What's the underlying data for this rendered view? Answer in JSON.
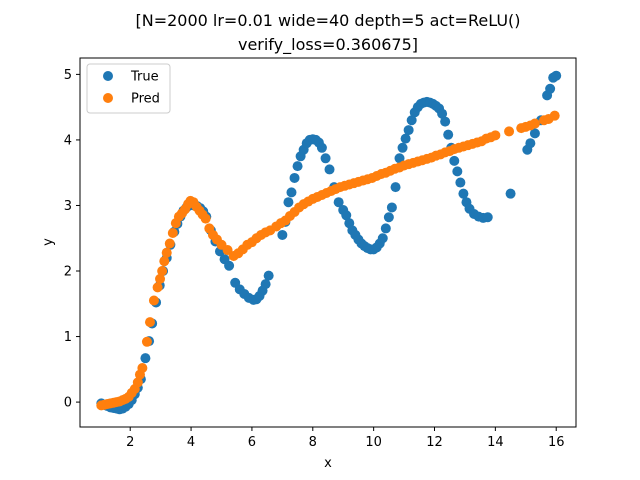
{
  "chart_data": {
    "type": "scatter",
    "title_lines": [
      "[N=2000 lr=0.01 wide=40 depth=5 act=ReLU()",
      "verify_loss=0.360675]"
    ],
    "xlabel": "x",
    "ylabel": "y",
    "xlim": [
      0.35,
      16.65
    ],
    "ylim": [
      -0.38,
      5.25
    ],
    "xticks": [
      2,
      4,
      6,
      8,
      10,
      12,
      14,
      16
    ],
    "yticks": [
      0,
      1,
      2,
      3,
      4,
      5
    ],
    "grid": false,
    "legend_position": "top-left",
    "series": [
      {
        "name": "True",
        "color": "#1f77b4",
        "points": [
          [
            1.05,
            -0.02
          ],
          [
            1.15,
            -0.04
          ],
          [
            1.25,
            -0.06
          ],
          [
            1.35,
            -0.08
          ],
          [
            1.45,
            -0.09
          ],
          [
            1.55,
            -0.1
          ],
          [
            1.65,
            -0.11
          ],
          [
            1.75,
            -0.1
          ],
          [
            1.85,
            -0.07
          ],
          [
            1.95,
            -0.03
          ],
          [
            2.05,
            0.03
          ],
          [
            2.15,
            0.12
          ],
          [
            2.25,
            0.22
          ],
          [
            2.35,
            0.35
          ],
          [
            2.5,
            0.67
          ],
          [
            2.62,
            0.93
          ],
          [
            2.72,
            1.2
          ],
          [
            2.85,
            1.52
          ],
          [
            2.97,
            1.78
          ],
          [
            3.08,
            2.0
          ],
          [
            3.2,
            2.2
          ],
          [
            3.32,
            2.4
          ],
          [
            3.45,
            2.6
          ],
          [
            3.55,
            2.72
          ],
          [
            3.65,
            2.83
          ],
          [
            3.75,
            2.92
          ],
          [
            3.85,
            2.97
          ],
          [
            3.95,
            3.0
          ],
          [
            4.1,
            3.0
          ],
          [
            4.2,
            2.99
          ],
          [
            4.3,
            2.96
          ],
          [
            4.4,
            2.91
          ],
          [
            4.5,
            2.83
          ],
          [
            4.65,
            2.62
          ],
          [
            4.8,
            2.45
          ],
          [
            4.95,
            2.3
          ],
          [
            5.1,
            2.18
          ],
          [
            5.25,
            2.08
          ],
          [
            5.45,
            1.82
          ],
          [
            5.6,
            1.72
          ],
          [
            5.75,
            1.65
          ],
          [
            5.9,
            1.59
          ],
          [
            6.05,
            1.56
          ],
          [
            6.15,
            1.57
          ],
          [
            6.25,
            1.62
          ],
          [
            6.35,
            1.7
          ],
          [
            6.45,
            1.8
          ],
          [
            6.55,
            1.93
          ],
          [
            7.0,
            2.55
          ],
          [
            7.1,
            2.75
          ],
          [
            7.2,
            3.05
          ],
          [
            7.3,
            3.2
          ],
          [
            7.4,
            3.42
          ],
          [
            7.5,
            3.6
          ],
          [
            7.6,
            3.75
          ],
          [
            7.7,
            3.85
          ],
          [
            7.8,
            3.95
          ],
          [
            7.9,
            4.0
          ],
          [
            8.0,
            4.01
          ],
          [
            8.1,
            4.0
          ],
          [
            8.2,
            3.96
          ],
          [
            8.3,
            3.88
          ],
          [
            8.42,
            3.72
          ],
          [
            8.55,
            3.55
          ],
          [
            8.7,
            3.28
          ],
          [
            8.85,
            3.05
          ],
          [
            9.0,
            2.93
          ],
          [
            9.1,
            2.85
          ],
          [
            9.2,
            2.73
          ],
          [
            9.3,
            2.62
          ],
          [
            9.4,
            2.55
          ],
          [
            9.5,
            2.48
          ],
          [
            9.6,
            2.42
          ],
          [
            9.7,
            2.38
          ],
          [
            9.8,
            2.35
          ],
          [
            9.9,
            2.33
          ],
          [
            10.0,
            2.33
          ],
          [
            10.1,
            2.36
          ],
          [
            10.2,
            2.42
          ],
          [
            10.3,
            2.5
          ],
          [
            10.4,
            2.65
          ],
          [
            10.5,
            2.82
          ],
          [
            10.6,
            2.97
          ],
          [
            10.72,
            3.28
          ],
          [
            10.85,
            3.72
          ],
          [
            10.95,
            3.88
          ],
          [
            11.05,
            4.02
          ],
          [
            11.15,
            4.15
          ],
          [
            11.25,
            4.3
          ],
          [
            11.35,
            4.42
          ],
          [
            11.45,
            4.5
          ],
          [
            11.55,
            4.55
          ],
          [
            11.65,
            4.57
          ],
          [
            11.75,
            4.58
          ],
          [
            11.85,
            4.57
          ],
          [
            11.95,
            4.55
          ],
          [
            12.05,
            4.52
          ],
          [
            12.15,
            4.48
          ],
          [
            12.25,
            4.4
          ],
          [
            12.35,
            4.28
          ],
          [
            12.45,
            4.08
          ],
          [
            12.55,
            3.88
          ],
          [
            12.65,
            3.68
          ],
          [
            12.75,
            3.52
          ],
          [
            12.85,
            3.35
          ],
          [
            12.95,
            3.18
          ],
          [
            13.05,
            3.05
          ],
          [
            13.15,
            2.95
          ],
          [
            13.3,
            2.87
          ],
          [
            13.45,
            2.83
          ],
          [
            13.6,
            2.81
          ],
          [
            13.75,
            2.82
          ],
          [
            14.5,
            3.18
          ],
          [
            15.05,
            3.85
          ],
          [
            15.15,
            3.95
          ],
          [
            15.3,
            4.1
          ],
          [
            15.5,
            4.3
          ],
          [
            15.7,
            4.68
          ],
          [
            15.8,
            4.78
          ],
          [
            15.9,
            4.95
          ],
          [
            16.0,
            4.98
          ]
        ]
      },
      {
        "name": "Pred",
        "color": "#ff7f0e",
        "points": [
          [
            1.05,
            -0.05
          ],
          [
            1.15,
            -0.04
          ],
          [
            1.25,
            -0.03
          ],
          [
            1.35,
            -0.02
          ],
          [
            1.45,
            -0.01
          ],
          [
            1.55,
            0.0
          ],
          [
            1.65,
            0.01
          ],
          [
            1.75,
            0.03
          ],
          [
            1.85,
            0.05
          ],
          [
            1.95,
            0.08
          ],
          [
            2.05,
            0.14
          ],
          [
            2.15,
            0.2
          ],
          [
            2.25,
            0.3
          ],
          [
            2.32,
            0.42
          ],
          [
            2.4,
            0.52
          ],
          [
            2.55,
            0.92
          ],
          [
            2.65,
            1.22
          ],
          [
            2.78,
            1.55
          ],
          [
            2.9,
            1.75
          ],
          [
            2.98,
            1.88
          ],
          [
            3.05,
            2.0
          ],
          [
            3.12,
            2.15
          ],
          [
            3.2,
            2.28
          ],
          [
            3.3,
            2.42
          ],
          [
            3.4,
            2.58
          ],
          [
            3.5,
            2.73
          ],
          [
            3.6,
            2.83
          ],
          [
            3.7,
            2.88
          ],
          [
            3.8,
            2.94
          ],
          [
            3.9,
            3.02
          ],
          [
            3.98,
            3.07
          ],
          [
            4.08,
            3.05
          ],
          [
            4.18,
            2.98
          ],
          [
            4.28,
            2.92
          ],
          [
            4.38,
            2.86
          ],
          [
            4.48,
            2.8
          ],
          [
            4.6,
            2.65
          ],
          [
            4.72,
            2.55
          ],
          [
            4.85,
            2.48
          ],
          [
            5.0,
            2.4
          ],
          [
            5.2,
            2.32
          ],
          [
            5.4,
            2.23
          ],
          [
            5.55,
            2.27
          ],
          [
            5.7,
            2.33
          ],
          [
            5.85,
            2.4
          ],
          [
            6.0,
            2.44
          ],
          [
            6.15,
            2.5
          ],
          [
            6.3,
            2.55
          ],
          [
            6.45,
            2.59
          ],
          [
            6.6,
            2.62
          ],
          [
            6.8,
            2.68
          ],
          [
            6.95,
            2.73
          ],
          [
            7.1,
            2.77
          ],
          [
            7.25,
            2.84
          ],
          [
            7.4,
            2.9
          ],
          [
            7.55,
            2.97
          ],
          [
            7.7,
            3.02
          ],
          [
            7.85,
            3.06
          ],
          [
            8.0,
            3.1
          ],
          [
            8.15,
            3.13
          ],
          [
            8.3,
            3.16
          ],
          [
            8.45,
            3.19
          ],
          [
            8.6,
            3.22
          ],
          [
            8.75,
            3.25
          ],
          [
            8.9,
            3.28
          ],
          [
            9.05,
            3.3
          ],
          [
            9.2,
            3.32
          ],
          [
            9.35,
            3.34
          ],
          [
            9.5,
            3.36
          ],
          [
            9.65,
            3.38
          ],
          [
            9.8,
            3.4
          ],
          [
            9.95,
            3.42
          ],
          [
            10.1,
            3.45
          ],
          [
            10.25,
            3.48
          ],
          [
            10.4,
            3.5
          ],
          [
            10.55,
            3.53
          ],
          [
            10.7,
            3.56
          ],
          [
            10.85,
            3.58
          ],
          [
            11.0,
            3.61
          ],
          [
            11.15,
            3.63
          ],
          [
            11.3,
            3.65
          ],
          [
            11.45,
            3.67
          ],
          [
            11.6,
            3.69
          ],
          [
            11.75,
            3.71
          ],
          [
            11.9,
            3.73
          ],
          [
            12.05,
            3.76
          ],
          [
            12.2,
            3.78
          ],
          [
            12.35,
            3.81
          ],
          [
            12.5,
            3.83
          ],
          [
            12.65,
            3.86
          ],
          [
            12.8,
            3.88
          ],
          [
            12.95,
            3.9
          ],
          [
            13.1,
            3.92
          ],
          [
            13.25,
            3.94
          ],
          [
            13.4,
            3.96
          ],
          [
            13.55,
            3.98
          ],
          [
            13.7,
            4.02
          ],
          [
            13.85,
            4.04
          ],
          [
            14.0,
            4.07
          ],
          [
            14.45,
            4.13
          ],
          [
            14.85,
            4.18
          ],
          [
            15.0,
            4.2
          ],
          [
            15.15,
            4.22
          ],
          [
            15.3,
            4.25
          ],
          [
            15.6,
            4.3
          ],
          [
            15.75,
            4.32
          ],
          [
            15.95,
            4.37
          ]
        ]
      }
    ]
  }
}
